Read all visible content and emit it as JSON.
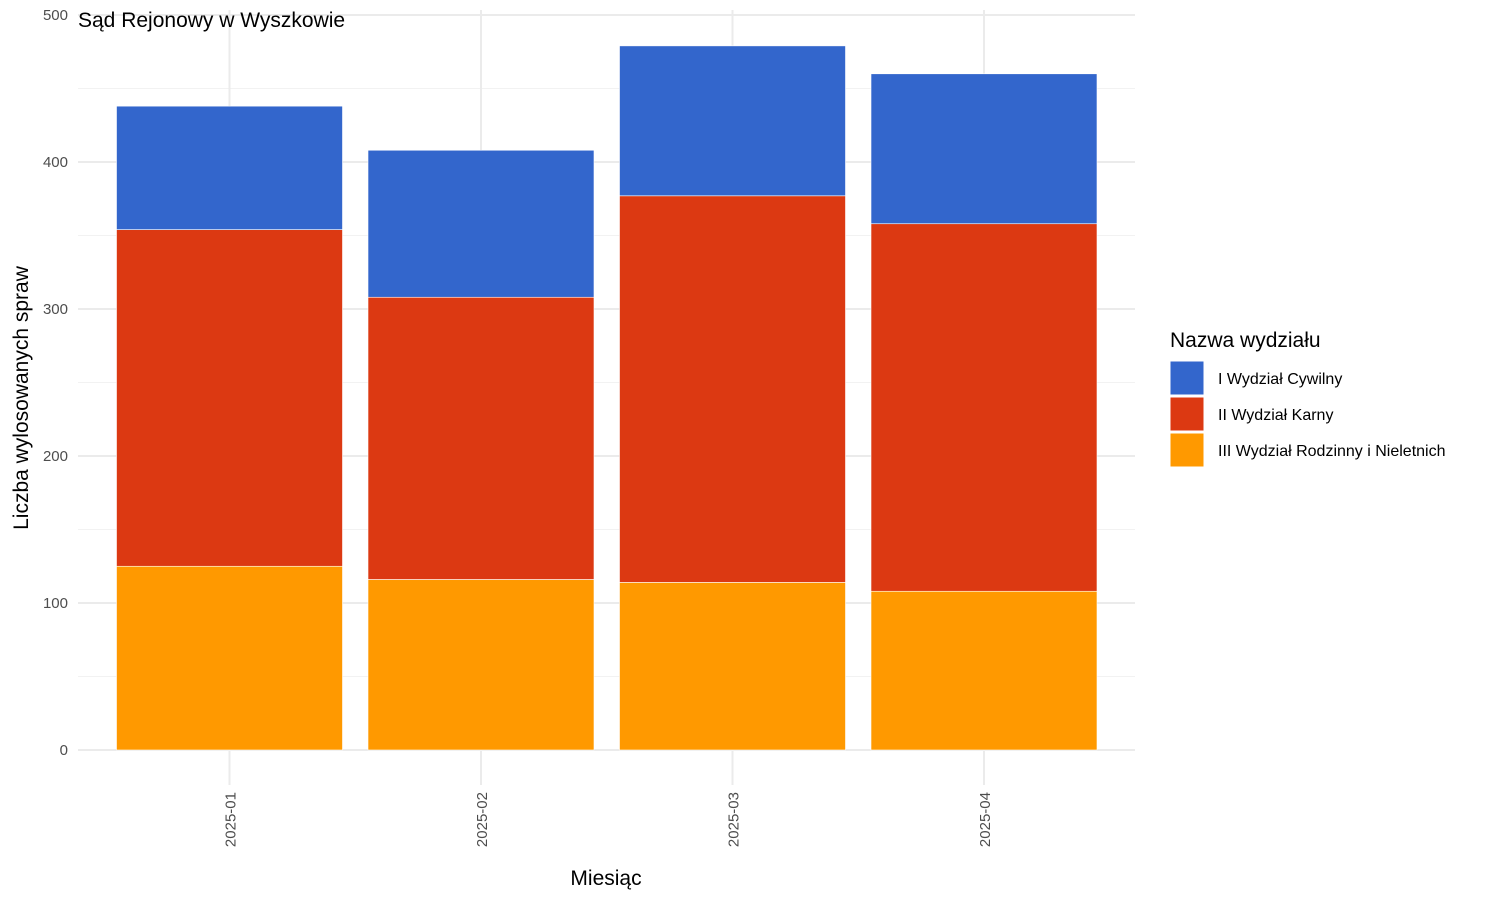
{
  "chart_data": {
    "type": "bar",
    "stacked": true,
    "title": "Sąd Rejonowy w Wyszkowie",
    "xlabel": "Miesiąc",
    "ylabel": "Liczba wylosowanych spraw",
    "ylim": [
      0,
      500
    ],
    "yticks": [
      "0",
      "100",
      "200",
      "300",
      "400",
      "500"
    ],
    "grid": true,
    "legend_position": "right",
    "legend_title": "Nazwa wydziału",
    "categories": [
      "2025-01",
      "2025-02",
      "2025-03",
      "2025-04"
    ],
    "series": [
      {
        "name": "I Wydział Cywilny",
        "color": "#3366CC",
        "values": [
          84,
          100,
          102,
          102
        ]
      },
      {
        "name": "II Wydział Karny",
        "color": "#DC3912",
        "values": [
          229,
          192,
          263,
          250
        ]
      },
      {
        "name": "III Wydział Rodzinny i Nieletnich",
        "color": "#FF9900",
        "values": [
          125,
          116,
          114,
          108
        ]
      }
    ],
    "stack_order_bottom_to_top": [
      "III Wydział Rodzinny i Nieletnich",
      "II Wydział Karny",
      "I Wydział Cywilny"
    ]
  }
}
